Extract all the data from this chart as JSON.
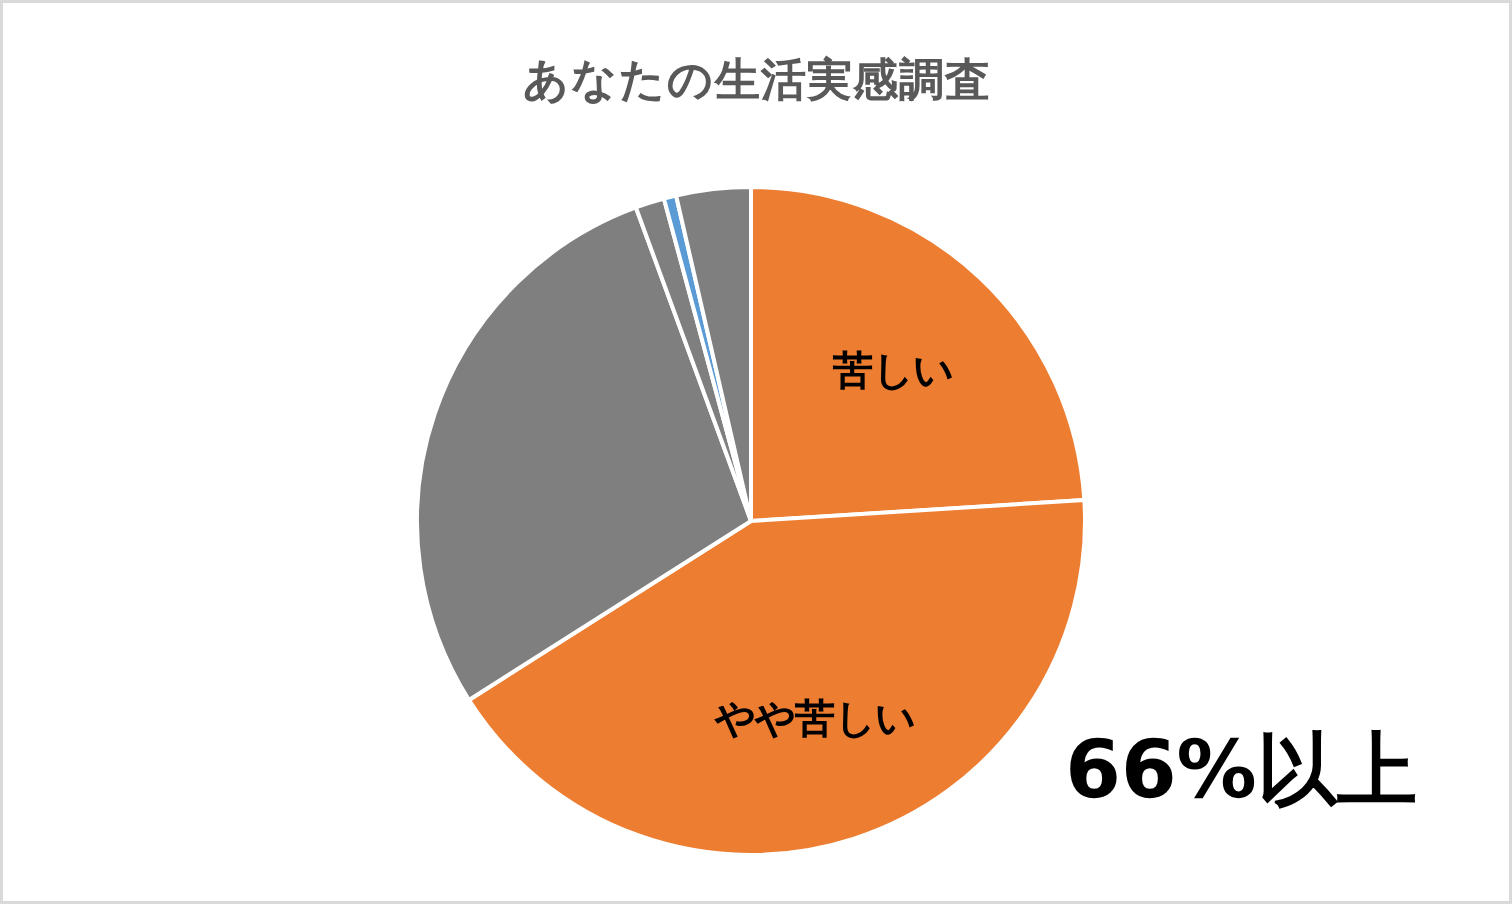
{
  "chart_data": {
    "type": "pie",
    "title": "あなたの生活実感調査",
    "categories": [
      "苦しい",
      "やや苦しい",
      null,
      null,
      null,
      null
    ],
    "values": [
      24,
      42,
      28.4,
      1.4,
      0.6,
      3.6
    ],
    "colors": [
      "#ed7d31",
      "#ed7d31",
      "#7f7f7f",
      "#7f7f7f",
      "#5b9bd5",
      "#7f7f7f"
    ],
    "annotations": [
      "66%以上"
    ]
  }
}
